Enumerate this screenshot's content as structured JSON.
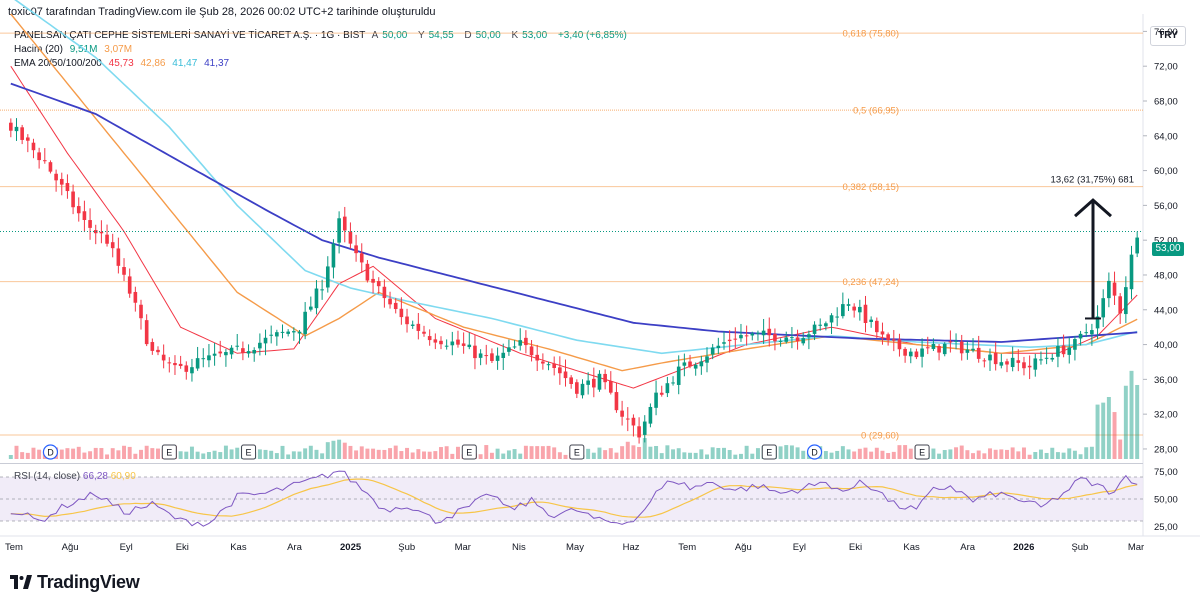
{
  "caption": "toxic07 tarafından TradingView.com ile Şub 28, 2026 00:02 UTC+2 tarihinde oluşturuldu",
  "legend": {
    "symbol": "PANELSAN ÇATI CEPHE SİSTEMLERİ SANAYİ VE TİCARET A.Ş. · 1G · BIST",
    "ohlc": [
      {
        "k": "A",
        "v": "50,00"
      },
      {
        "k": "Y",
        "v": "54,55"
      },
      {
        "k": "D",
        "v": "50,00"
      },
      {
        "k": "K",
        "v": "53,00"
      }
    ],
    "change": "+3,40 (+6,85%)",
    "volume_label": "Hacim (20)",
    "volume_values": [
      "9,51M",
      "3,07M"
    ],
    "ema_label": "EMA 20/50/100/200",
    "ema_values": [
      "45,73",
      "42,86",
      "41,47",
      "41,37"
    ]
  },
  "currency": "TRY",
  "last_price": "53,00",
  "measure_label": "13,62 (31,75%) 681",
  "rsi_legend": {
    "label": "RSI (14, close)",
    "v1": "66,28",
    "v2": "60,90"
  },
  "logo": "TradingView",
  "colors": {
    "up": "#089981",
    "down": "#f23645",
    "ema20": "#f23645",
    "ema50": "#f59b49",
    "ema100": "#7fdaf0",
    "ema200": "#3c3fc5",
    "fib": "#f59b49",
    "rsi": "#7e57c2",
    "rsi_ma": "#f7c548",
    "rsi_band": "#ede7f6"
  },
  "chart_data": {
    "type": "line",
    "title": "PANELSAN ÇATI CEPHE SİSTEMLERİ SANAYİ VE TİCARET A.Ş. · 1G · BIST",
    "ylim": [
      26.5,
      78
    ],
    "y_ticks": [
      "28,00",
      "32,00",
      "36,00",
      "40,00",
      "44,00",
      "48,00",
      "52,00",
      "56,00",
      "60,00",
      "64,00",
      "68,00",
      "72,00",
      "76,00"
    ],
    "x_ticks": [
      "Tem",
      "Ağu",
      "Eyl",
      "Eki",
      "Kas",
      "Ara",
      "2025",
      "Şub",
      "Mar",
      "Nis",
      "May",
      "Haz",
      "Tem",
      "Ağu",
      "Eyl",
      "Eki",
      "Kas",
      "Ara",
      "2026",
      "Şub",
      "Mar"
    ],
    "price_anchors": [
      [
        0,
        65
      ],
      [
        3,
        63
      ],
      [
        6,
        61
      ],
      [
        9,
        58
      ],
      [
        13,
        54
      ],
      [
        17,
        52
      ],
      [
        21,
        46
      ],
      [
        25,
        39
      ],
      [
        29,
        37
      ],
      [
        33,
        38
      ],
      [
        39,
        39
      ],
      [
        45,
        40.5
      ],
      [
        51,
        42
      ],
      [
        55,
        47
      ],
      [
        58,
        54
      ],
      [
        61,
        50
      ],
      [
        64,
        47
      ],
      [
        69,
        43
      ],
      [
        74,
        41
      ],
      [
        79,
        40
      ],
      [
        85,
        38
      ],
      [
        90,
        40
      ],
      [
        95,
        38
      ],
      [
        100,
        35
      ],
      [
        104,
        36
      ],
      [
        108,
        32
      ],
      [
        111,
        29.8
      ],
      [
        114,
        34
      ],
      [
        118,
        37
      ],
      [
        123,
        39
      ],
      [
        128,
        41
      ],
      [
        134,
        41
      ],
      [
        139,
        41
      ],
      [
        143,
        42
      ],
      [
        148,
        45
      ],
      [
        151,
        43
      ],
      [
        155,
        40
      ],
      [
        160,
        39
      ],
      [
        166,
        40
      ],
      [
        171,
        39
      ],
      [
        176,
        38
      ],
      [
        180,
        37.5
      ],
      [
        184,
        39
      ],
      [
        188,
        40
      ],
      [
        192,
        43
      ],
      [
        194,
        47
      ],
      [
        196,
        44
      ],
      [
        199,
        53
      ]
    ],
    "ema_anchors": {
      "EMA 20": [
        [
          0,
          72
        ],
        [
          10,
          62
        ],
        [
          20,
          53
        ],
        [
          30,
          42
        ],
        [
          40,
          39
        ],
        [
          50,
          39.5
        ],
        [
          58,
          47
        ],
        [
          64,
          49
        ],
        [
          75,
          43
        ],
        [
          90,
          39
        ],
        [
          100,
          37
        ],
        [
          110,
          35
        ],
        [
          118,
          37
        ],
        [
          130,
          40
        ],
        [
          145,
          42
        ],
        [
          160,
          40
        ],
        [
          175,
          39
        ],
        [
          185,
          39
        ],
        [
          192,
          41
        ],
        [
          199,
          45.7
        ]
      ],
      "EMA 50": [
        [
          0,
          78
        ],
        [
          10,
          70
        ],
        [
          20,
          62
        ],
        [
          30,
          54
        ],
        [
          40,
          46
        ],
        [
          52,
          41
        ],
        [
          58,
          43
        ],
        [
          65,
          46
        ],
        [
          80,
          42
        ],
        [
          95,
          39.5
        ],
        [
          108,
          37
        ],
        [
          116,
          38
        ],
        [
          130,
          39.5
        ],
        [
          145,
          41
        ],
        [
          160,
          40
        ],
        [
          175,
          39
        ],
        [
          190,
          40
        ],
        [
          199,
          42.9
        ]
      ],
      "EMA 100": [
        [
          0,
          80
        ],
        [
          15,
          73
        ],
        [
          28,
          65
        ],
        [
          40,
          56
        ],
        [
          52,
          48.5
        ],
        [
          60,
          46.5
        ],
        [
          70,
          45
        ],
        [
          85,
          43
        ],
        [
          100,
          40.5
        ],
        [
          115,
          39
        ],
        [
          130,
          40
        ],
        [
          145,
          41
        ],
        [
          160,
          40.3
        ],
        [
          180,
          39.7
        ],
        [
          190,
          40
        ],
        [
          199,
          41.5
        ]
      ],
      "EMA 200": [
        [
          0,
          70
        ],
        [
          15,
          66.5
        ],
        [
          30,
          61
        ],
        [
          45,
          55.5
        ],
        [
          55,
          52
        ],
        [
          65,
          50
        ],
        [
          80,
          47.5
        ],
        [
          95,
          45
        ],
        [
          110,
          42.5
        ],
        [
          125,
          41.5
        ],
        [
          150,
          40.7
        ],
        [
          175,
          40.3
        ],
        [
          199,
          41.4
        ]
      ]
    },
    "fib_levels": [
      {
        "ratio": "0",
        "price": 29.6,
        "label": "0 (29,60)"
      },
      {
        "ratio": "0.236",
        "price": 47.24,
        "label": "0,236 (47,24)"
      },
      {
        "ratio": "0.382",
        "price": 58.15,
        "label": "0,382 (58,15)"
      },
      {
        "ratio": "0.5",
        "price": 66.95,
        "label": "0,5 (66,95)"
      },
      {
        "ratio": "0.618",
        "price": 75.8,
        "label": "0,618 (75,80)"
      }
    ],
    "measure": {
      "from_price": 43.0,
      "to_price": 56.6,
      "label": "13,62 (31,75%) 681"
    },
    "events": [
      {
        "label": "D",
        "day": 7,
        "kind": "circle"
      },
      {
        "label": "E",
        "day": 28,
        "kind": "square"
      },
      {
        "label": "E",
        "day": 42,
        "kind": "square"
      },
      {
        "label": "E",
        "day": 81,
        "kind": "square"
      },
      {
        "label": "E",
        "day": 100,
        "kind": "square"
      },
      {
        "label": "E",
        "day": 134,
        "kind": "square"
      },
      {
        "label": "D",
        "day": 142,
        "kind": "circle"
      },
      {
        "label": "E",
        "day": 161,
        "kind": "square"
      }
    ],
    "rsi": {
      "ylim": [
        20,
        80
      ],
      "y_ticks": [
        "25,00",
        "50,00",
        "75,00"
      ],
      "anchors": [
        [
          0,
          40
        ],
        [
          5,
          30
        ],
        [
          10,
          45
        ],
        [
          15,
          55
        ],
        [
          20,
          38
        ],
        [
          25,
          45
        ],
        [
          30,
          30
        ],
        [
          35,
          28
        ],
        [
          40,
          52
        ],
        [
          45,
          55
        ],
        [
          50,
          62
        ],
        [
          55,
          70
        ],
        [
          58,
          76
        ],
        [
          60,
          68
        ],
        [
          63,
          55
        ],
        [
          66,
          40
        ],
        [
          70,
          45
        ],
        [
          75,
          30
        ],
        [
          80,
          40
        ],
        [
          85,
          55
        ],
        [
          88,
          40
        ],
        [
          92,
          48
        ],
        [
          96,
          35
        ],
        [
          100,
          40
        ],
        [
          104,
          30
        ],
        [
          108,
          28
        ],
        [
          111,
          35
        ],
        [
          114,
          55
        ],
        [
          117,
          68
        ],
        [
          120,
          60
        ],
        [
          124,
          65
        ],
        [
          128,
          58
        ],
        [
          132,
          62
        ],
        [
          136,
          55
        ],
        [
          140,
          60
        ],
        [
          144,
          65
        ],
        [
          148,
          55
        ],
        [
          150,
          68
        ],
        [
          153,
          58
        ],
        [
          156,
          45
        ],
        [
          160,
          40
        ],
        [
          163,
          58
        ],
        [
          166,
          62
        ],
        [
          170,
          48
        ],
        [
          174,
          55
        ],
        [
          178,
          50
        ],
        [
          182,
          42
        ],
        [
          186,
          55
        ],
        [
          189,
          68
        ],
        [
          192,
          62
        ],
        [
          195,
          55
        ],
        [
          197,
          70
        ],
        [
          199,
          66
        ]
      ]
    }
  }
}
